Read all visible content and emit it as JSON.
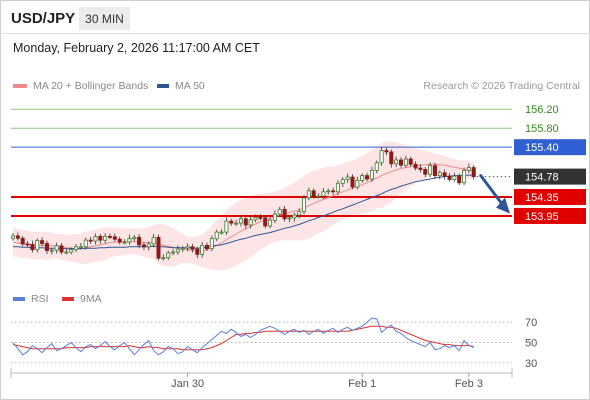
{
  "header": {
    "symbol": "USD/JPY",
    "timeframe": "30 MIN",
    "datetime": "Monday, February 2, 2026 11:17:00 AM CET"
  },
  "legend": {
    "ma20_label": "MA 20 + Bollinger Bands",
    "ma50_label": "MA 50",
    "credit": "Research © 2026 Trading Central",
    "rsi_label": "RSI",
    "rsi_ma_label": "9MA"
  },
  "colors": {
    "ma20": "#f08a8a",
    "ma50": "#2f5597",
    "bands_fill": "#fde0e0",
    "candle_up": "#3a7a2a",
    "candle_down": "#8b1a1a",
    "support": "#e00000",
    "resistance": "#2f5fd0",
    "target": "#8dc87a",
    "target_text": "#3a8a20",
    "rsi": "#5b7fd6",
    "rsi_ma": "#e03030",
    "arrow": "#2f5597",
    "price_tag": "#333333"
  },
  "chart_data": [
    {
      "type": "candlestick",
      "title": "USD/JPY 30 MIN",
      "y_range": [
        152.6,
        156.5
      ],
      "levels": [
        {
          "label": "156.20",
          "value": 156.2,
          "role": "target"
        },
        {
          "label": "155.80",
          "value": 155.8,
          "role": "target"
        },
        {
          "label": "155.40",
          "value": 155.4,
          "role": "resistance"
        },
        {
          "label": "154.78",
          "value": 154.78,
          "role": "last-price"
        },
        {
          "label": "154.35",
          "value": 154.35,
          "role": "support"
        },
        {
          "label": "153.95",
          "value": 153.95,
          "role": "support"
        }
      ],
      "x_ticks": [
        {
          "label": "Jan 30",
          "index": 36
        },
        {
          "label": "Feb 1",
          "index": 72
        },
        {
          "label": "Feb 3",
          "index": 94
        }
      ],
      "close": [
        153.53,
        153.48,
        153.36,
        153.35,
        153.24,
        153.43,
        153.37,
        153.22,
        153.23,
        153.32,
        153.19,
        153.19,
        153.24,
        153.3,
        153.3,
        153.44,
        153.42,
        153.52,
        153.44,
        153.52,
        153.51,
        153.46,
        153.4,
        153.4,
        153.47,
        153.5,
        153.34,
        153.3,
        153.36,
        153.5,
        153.06,
        153.07,
        153.17,
        153.19,
        153.25,
        153.27,
        153.3,
        153.25,
        153.14,
        153.33,
        153.26,
        153.47,
        153.61,
        153.61,
        153.84,
        153.8,
        153.8,
        153.89,
        153.76,
        153.87,
        153.92,
        153.91,
        153.74,
        153.86,
        153.99,
        154.09,
        153.89,
        153.91,
        153.97,
        154.04,
        154.33,
        154.48,
        154.37,
        154.37,
        154.46,
        154.48,
        154.46,
        154.64,
        154.72,
        154.77,
        154.56,
        154.7,
        154.8,
        154.73,
        154.91,
        155.07,
        155.33,
        155.3,
        155.05,
        155.13,
        155.02,
        155.15,
        155.04,
        154.96,
        154.93,
        154.83,
        155.01,
        154.8,
        154.86,
        154.79,
        154.72,
        154.79,
        154.65,
        154.91,
        154.97,
        154.78
      ],
      "open_note": "each candle opens at the previous close",
      "high_offsets": [
        0.06,
        0.07,
        0.05,
        0.06,
        0.08,
        0.05,
        0.07,
        0.06,
        0.05,
        0.07
      ],
      "low_offsets": [
        0.05,
        0.07,
        0.06,
        0.05,
        0.08,
        0.06,
        0.05,
        0.07,
        0.06,
        0.05
      ],
      "ma20": [
        153.4,
        153.38,
        153.36,
        153.35,
        153.33,
        153.33,
        153.33,
        153.32,
        153.32,
        153.32,
        153.3,
        153.28,
        153.27,
        153.27,
        153.26,
        153.28,
        153.3,
        153.32,
        153.34,
        153.36,
        153.39,
        153.4,
        153.4,
        153.41,
        153.41,
        153.41,
        153.4,
        153.39,
        153.39,
        153.4,
        153.36,
        153.33,
        153.31,
        153.29,
        153.28,
        153.26,
        153.24,
        153.22,
        153.21,
        153.22,
        153.24,
        153.28,
        153.33,
        153.38,
        153.45,
        153.51,
        153.57,
        153.63,
        153.68,
        153.73,
        153.78,
        153.83,
        153.86,
        153.9,
        153.93,
        153.97,
        153.99,
        154.02,
        154.05,
        154.08,
        154.12,
        154.17,
        154.21,
        154.26,
        154.3,
        154.34,
        154.38,
        154.42,
        154.46,
        154.5,
        154.53,
        154.57,
        154.61,
        154.65,
        154.7,
        154.75,
        154.8,
        154.85,
        154.88,
        154.92,
        154.95,
        154.97,
        154.99,
        155.01,
        155.02,
        155.03,
        155.04,
        155.04,
        155.03,
        155.02,
        155.0,
        154.98,
        154.96,
        154.94,
        154.92,
        154.9
      ],
      "bb_upper": [
        153.7,
        153.68,
        153.66,
        153.64,
        153.62,
        153.62,
        153.62,
        153.62,
        153.6,
        153.58,
        153.57,
        153.56,
        153.56,
        153.57,
        153.58,
        153.62,
        153.64,
        153.66,
        153.68,
        153.7,
        153.71,
        153.7,
        153.69,
        153.68,
        153.68,
        153.68,
        153.68,
        153.69,
        153.72,
        153.76,
        153.78,
        153.77,
        153.74,
        153.7,
        153.64,
        153.57,
        153.52,
        153.5,
        153.52,
        153.56,
        153.64,
        153.74,
        153.86,
        153.96,
        154.08,
        154.16,
        154.24,
        154.3,
        154.34,
        154.38,
        154.4,
        154.42,
        154.43,
        154.44,
        154.46,
        154.5,
        154.54,
        154.6,
        154.66,
        154.72,
        154.8,
        154.86,
        154.9,
        154.94,
        154.97,
        154.99,
        155.0,
        155.02,
        155.05,
        155.09,
        155.12,
        155.17,
        155.22,
        155.28,
        155.34,
        155.4,
        155.48,
        155.52,
        155.52,
        155.5,
        155.47,
        155.44,
        155.41,
        155.38,
        155.35,
        155.32,
        155.29,
        155.27,
        155.25,
        155.22,
        155.18,
        155.15,
        155.13,
        155.12,
        155.11,
        155.1
      ],
      "bb_lower": [
        153.1,
        153.08,
        153.06,
        153.06,
        153.04,
        153.04,
        153.04,
        153.02,
        153.04,
        153.06,
        153.03,
        153.0,
        152.98,
        152.97,
        152.94,
        152.94,
        152.96,
        152.98,
        153.0,
        153.02,
        153.07,
        153.1,
        153.11,
        153.14,
        153.14,
        153.14,
        153.12,
        153.09,
        153.06,
        153.04,
        152.94,
        152.89,
        152.88,
        152.88,
        152.92,
        152.95,
        152.96,
        152.94,
        152.9,
        152.88,
        152.84,
        152.82,
        152.8,
        152.8,
        152.82,
        152.86,
        152.9,
        152.96,
        153.02,
        153.08,
        153.16,
        153.24,
        153.29,
        153.36,
        153.4,
        153.44,
        153.44,
        153.44,
        153.44,
        153.44,
        153.44,
        153.48,
        153.52,
        153.58,
        153.63,
        153.69,
        153.76,
        153.82,
        153.87,
        153.91,
        153.94,
        153.97,
        154.0,
        154.02,
        154.06,
        154.1,
        154.12,
        154.18,
        154.24,
        154.34,
        154.43,
        154.5,
        154.57,
        154.64,
        154.69,
        154.74,
        154.79,
        154.81,
        154.81,
        154.82,
        154.82,
        154.81,
        154.79,
        154.76,
        154.73,
        154.7
      ],
      "ma50": [
        153.3,
        153.3,
        153.29,
        153.29,
        153.28,
        153.28,
        153.28,
        153.27,
        153.27,
        153.27,
        153.27,
        153.26,
        153.26,
        153.26,
        153.26,
        153.27,
        153.27,
        153.27,
        153.28,
        153.28,
        153.29,
        153.29,
        153.29,
        153.29,
        153.3,
        153.3,
        153.3,
        153.3,
        153.3,
        153.31,
        153.3,
        153.3,
        153.29,
        153.28,
        153.28,
        153.28,
        153.28,
        153.28,
        153.27,
        153.28,
        153.29,
        153.31,
        153.33,
        153.34,
        153.37,
        153.4,
        153.43,
        153.46,
        153.48,
        153.51,
        153.54,
        153.56,
        153.58,
        153.6,
        153.63,
        153.66,
        153.69,
        153.71,
        153.74,
        153.77,
        153.81,
        153.85,
        153.88,
        153.92,
        153.95,
        153.99,
        154.03,
        154.07,
        154.1,
        154.14,
        154.18,
        154.22,
        154.26,
        154.3,
        154.34,
        154.38,
        154.42,
        154.47,
        154.51,
        154.54,
        154.58,
        154.61,
        154.64,
        154.67,
        154.69,
        154.71,
        154.73,
        154.75,
        154.77,
        154.78,
        154.79,
        154.8,
        154.8,
        154.81,
        154.81,
        154.82
      ],
      "forecast_arrow": {
        "from": 154.8,
        "to": 154.0
      }
    },
    {
      "type": "line",
      "title": "RSI",
      "y_range": [
        25,
        80
      ],
      "y_ticks": [
        30,
        50,
        70
      ],
      "series": [
        {
          "name": "RSI",
          "values": [
            50,
            44,
            38,
            41,
            47,
            44,
            40,
            45,
            49,
            42,
            44,
            47,
            50,
            45,
            41,
            46,
            48,
            44,
            47,
            51,
            46,
            43,
            47,
            50,
            44,
            38,
            43,
            48,
            52,
            42,
            38,
            41,
            46,
            44,
            39,
            41,
            46,
            43,
            40,
            45,
            49,
            53,
            57,
            61,
            59,
            63,
            60,
            56,
            58,
            55,
            58,
            62,
            64,
            66,
            64,
            61,
            58,
            61,
            63,
            60,
            62,
            58,
            61,
            63,
            59,
            62,
            64,
            60,
            63,
            65,
            62,
            64,
            66,
            70,
            74,
            73,
            60,
            64,
            67,
            61,
            59,
            55,
            52,
            50,
            48,
            46,
            50,
            43,
            44,
            47,
            45,
            47,
            42,
            52,
            47,
            45
          ]
        },
        {
          "name": "9MA",
          "values": [
            48,
            47,
            46,
            45,
            44,
            44,
            44,
            44,
            44,
            44,
            44,
            45,
            45,
            45,
            45,
            45,
            46,
            46,
            46,
            46,
            46,
            46,
            46,
            46,
            47,
            46,
            45,
            45,
            46,
            45,
            45,
            44,
            44,
            44,
            44,
            43,
            43,
            43,
            43,
            43,
            44,
            45,
            47,
            49,
            52,
            55,
            58,
            58,
            59,
            59,
            60,
            60,
            61,
            61,
            61,
            61,
            61,
            61,
            61,
            61,
            61,
            61,
            61,
            61,
            61,
            61,
            61,
            61,
            61,
            61,
            62,
            63,
            64,
            65,
            66,
            66,
            66,
            65,
            65,
            64,
            62,
            60,
            58,
            56,
            54,
            52,
            51,
            50,
            49,
            48,
            48,
            47,
            47,
            47,
            47,
            46
          ]
        }
      ]
    }
  ]
}
